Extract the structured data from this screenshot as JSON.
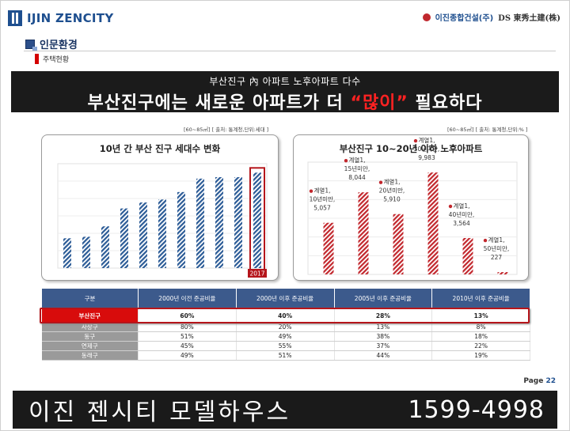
{
  "header": {
    "logo_left": "IJIN ZENCITY",
    "logo_right_1": "이진종합건설(주)",
    "logo_right_2": "DS 東秀土建(株)"
  },
  "section": {
    "title": "인문환경",
    "subtitle": "주택현황"
  },
  "banner": {
    "subtitle": "부산진구 內 아파트 노후아파트 다수",
    "title_before": "부산진구에는 새로운 아파트가 더 ",
    "title_highlight": "“많이”",
    "title_after": " 필요하다"
  },
  "chart_data": [
    {
      "type": "bar",
      "note": "[60~85㎡] [ 출처: 통계청,단위:세대 ]",
      "title": "10년 간 부산 진구 세대수 변화",
      "categories": [
        "",
        "",
        "",
        "",
        "",
        "",
        "",
        "",
        "",
        "",
        "2017"
      ],
      "values": [
        20,
        21,
        28,
        40,
        44,
        46,
        51,
        60,
        61,
        61,
        64
      ],
      "ylim": [
        0,
        70
      ],
      "highlight_label": "2017",
      "bar_color": "#2b5b96",
      "highlight_color": "#b5151b"
    },
    {
      "type": "bar",
      "note": "[60~85㎡] [ 출처: 통계청,단위:% ]",
      "title": "부산진구 10~20년 이하 노후아파트",
      "categories": [
        "10년미만",
        "15년미만",
        "20년미만",
        "30년미만",
        "40년미만",
        "50년미만"
      ],
      "series_label": "계열1",
      "values": [
        5057,
        8044,
        5910,
        9983,
        3564,
        227
      ],
      "ylim": [
        0,
        11000
      ],
      "bar_color": "#c2272d",
      "data_labels": [
        {
          "series": "계열1,",
          "cat": "10년미만,",
          "val": "5,057"
        },
        {
          "series": "계열1,",
          "cat": "15년미만,",
          "val": "8,044"
        },
        {
          "series": "계열1,",
          "cat": "20년미만,",
          "val": "5,910"
        },
        {
          "series": "계열1,",
          "cat": "30년미만,",
          "val": "9,983"
        },
        {
          "series": "계열1,",
          "cat": "40년미만,",
          "val": "3,564"
        },
        {
          "series": "계열1,",
          "cat": "50년미만,",
          "val": "227"
        }
      ]
    }
  ],
  "table": {
    "headers": [
      "구분",
      "2000년 이전 준공비율",
      "2000년 이후 준공비율",
      "2005년 이후 준공비율",
      "2010년 이후 준공비율"
    ],
    "rows": [
      [
        "부산진구",
        "60%",
        "40%",
        "28%",
        "13%"
      ],
      [
        "사상구",
        "80%",
        "20%",
        "13%",
        "8%"
      ],
      [
        "동구",
        "51%",
        "49%",
        "38%",
        "18%"
      ],
      [
        "연제구",
        "45%",
        "55%",
        "37%",
        "22%"
      ],
      [
        "동래구",
        "49%",
        "51%",
        "44%",
        "19%"
      ]
    ]
  },
  "page": {
    "label": "Page",
    "number": "22"
  },
  "footer": {
    "name": "이진 젠시티 모델하우스",
    "phone": "1599-4998"
  }
}
